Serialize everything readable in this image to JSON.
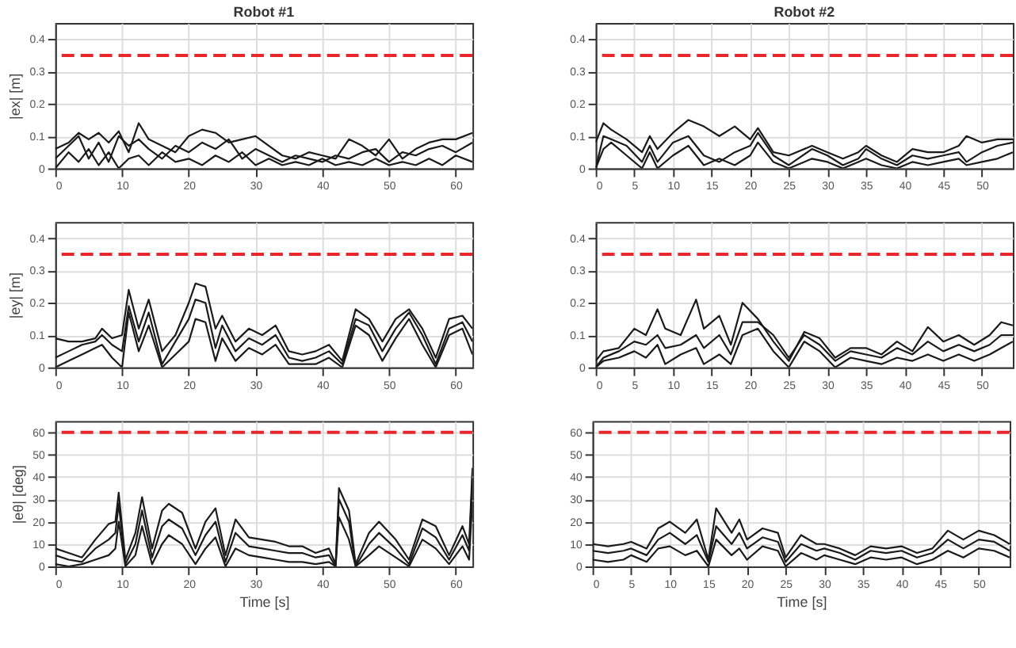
{
  "chart_data": [
    {
      "type": "line",
      "title": "Robot #1",
      "ylabel": "|ex| [m]",
      "xlim": [
        0,
        62.5
      ],
      "xticks": [
        0,
        10,
        20,
        30,
        40,
        50,
        60
      ],
      "ylim": [
        0,
        0.45
      ],
      "yticks": [
        0,
        0.1,
        0.2,
        0.3,
        0.4
      ],
      "grid": true,
      "ref_lines": [
        {
          "axis": "y",
          "value": 0.35,
          "color": "#e8262b",
          "line_style": "dashed"
        }
      ],
      "x": [
        0,
        2,
        3.5,
        5,
        6.5,
        8,
        9.5,
        11,
        12.5,
        14,
        16,
        18,
        20,
        22,
        24,
        26,
        28,
        30,
        32,
        34,
        36,
        38,
        40,
        42,
        44,
        46,
        48,
        50,
        52,
        54,
        56,
        58,
        60,
        62.5
      ],
      "series": [
        {
          "color": "#1a1a1a",
          "values": [
            0.06,
            0.08,
            0.11,
            0.09,
            0.11,
            0.08,
            0.115,
            0.05,
            0.14,
            0.09,
            0.07,
            0.05,
            0.1,
            0.12,
            0.11,
            0.08,
            0.09,
            0.1,
            0.07,
            0.04,
            0.03,
            0.05,
            0.04,
            0.03,
            0.09,
            0.07,
            0.04,
            0.09,
            0.03,
            0.06,
            0.08,
            0.09,
            0.09,
            0.11
          ]
        },
        {
          "color": "#1a1a1a",
          "values": [
            0.03,
            0.07,
            0.1,
            0.03,
            0.08,
            0.02,
            0.1,
            0.07,
            0.09,
            0.06,
            0.03,
            0.07,
            0.05,
            0.08,
            0.06,
            0.09,
            0.03,
            0.06,
            0.04,
            0.02,
            0.04,
            0.03,
            0.02,
            0.04,
            0.03,
            0.05,
            0.06,
            0.02,
            0.05,
            0.04,
            0.06,
            0.07,
            0.05,
            0.08
          ]
        },
        {
          "color": "#1a1a1a",
          "values": [
            0,
            0.05,
            0.02,
            0.06,
            0.01,
            0.05,
            0,
            0.03,
            0.04,
            0.01,
            0.05,
            0.02,
            0.03,
            0.01,
            0.04,
            0.02,
            0.05,
            0.01,
            0.03,
            0.01,
            0.02,
            0.01,
            0.03,
            0.01,
            0.02,
            0.01,
            0.03,
            0.01,
            0.02,
            0.01,
            0.03,
            0.01,
            0.04,
            0.02
          ]
        }
      ]
    },
    {
      "type": "line",
      "title": "Robot #2",
      "xlim": [
        0,
        54
      ],
      "xticks": [
        0,
        5,
        10,
        15,
        20,
        25,
        30,
        35,
        40,
        45,
        50
      ],
      "ylim": [
        0,
        0.45
      ],
      "yticks": [
        0,
        0.1,
        0.2,
        0.3,
        0.4
      ],
      "grid": true,
      "ref_lines": [
        {
          "axis": "y",
          "value": 0.35,
          "color": "#e8262b",
          "line_style": "dashed"
        }
      ],
      "x": [
        0,
        1,
        2,
        4,
        6,
        7,
        8,
        10,
        12,
        14,
        16,
        18,
        20,
        21,
        23,
        25,
        28,
        30,
        32,
        34,
        35,
        37,
        39,
        41,
        43,
        45,
        47,
        48,
        50,
        52,
        54
      ],
      "series": [
        {
          "color": "#1a1a1a",
          "values": [
            0.08,
            0.14,
            0.12,
            0.09,
            0.05,
            0.1,
            0.06,
            0.11,
            0.15,
            0.13,
            0.1,
            0.13,
            0.09,
            0.125,
            0.05,
            0.04,
            0.07,
            0.05,
            0.03,
            0.05,
            0.07,
            0.04,
            0.02,
            0.06,
            0.05,
            0.05,
            0.07,
            0.1,
            0.08,
            0.09,
            0.09
          ]
        },
        {
          "color": "#1a1a1a",
          "values": [
            0,
            0.1,
            0.09,
            0.07,
            0.02,
            0.07,
            0.02,
            0.08,
            0.1,
            0.04,
            0.02,
            0.05,
            0.07,
            0.11,
            0.04,
            0.01,
            0.06,
            0.04,
            0.01,
            0.03,
            0.06,
            0.03,
            0.01,
            0.04,
            0.03,
            0.04,
            0.05,
            0.02,
            0.05,
            0.07,
            0.08
          ]
        },
        {
          "color": "#1a1a1a",
          "values": [
            0,
            0.06,
            0.08,
            0.04,
            0,
            0.05,
            0,
            0.04,
            0.07,
            0.01,
            0.03,
            0.01,
            0.04,
            0.08,
            0.02,
            0,
            0.03,
            0.02,
            0,
            0.02,
            0.03,
            0.01,
            0,
            0.02,
            0.01,
            0.02,
            0.03,
            0.01,
            0.02,
            0.03,
            0.05
          ]
        }
      ]
    },
    {
      "type": "line",
      "ylabel": "|ey| [m]",
      "xlim": [
        0,
        62.5
      ],
      "xticks": [
        0,
        10,
        20,
        30,
        40,
        50,
        60
      ],
      "ylim": [
        0,
        0.45
      ],
      "yticks": [
        0,
        0.1,
        0.2,
        0.3,
        0.4
      ],
      "grid": true,
      "ref_lines": [
        {
          "axis": "y",
          "value": 0.35,
          "color": "#e8262b",
          "line_style": "dashed"
        }
      ],
      "x": [
        0,
        2,
        4,
        6,
        7,
        8.5,
        10,
        11,
        12.5,
        14,
        16,
        18,
        20,
        21,
        22.5,
        24,
        25,
        27,
        29,
        31,
        33,
        35,
        37,
        39,
        41,
        43,
        45,
        47,
        49,
        51,
        53,
        55,
        57,
        59,
        61,
        62.5
      ],
      "series": [
        {
          "color": "#1a1a1a",
          "values": [
            0.09,
            0.08,
            0.08,
            0.09,
            0.12,
            0.09,
            0.1,
            0.24,
            0.12,
            0.21,
            0.05,
            0.1,
            0.2,
            0.26,
            0.25,
            0.12,
            0.16,
            0.08,
            0.12,
            0.1,
            0.13,
            0.05,
            0.04,
            0.05,
            0.07,
            0.02,
            0.18,
            0.15,
            0.08,
            0.15,
            0.18,
            0.12,
            0.03,
            0.15,
            0.16,
            0.12
          ]
        },
        {
          "color": "#1a1a1a",
          "values": [
            0.03,
            0.05,
            0.07,
            0.08,
            0.1,
            0.07,
            0.05,
            0.19,
            0.08,
            0.17,
            0.01,
            0.08,
            0.15,
            0.21,
            0.2,
            0.06,
            0.13,
            0.05,
            0.09,
            0.07,
            0.1,
            0.03,
            0.02,
            0.03,
            0.05,
            0.01,
            0.15,
            0.13,
            0.05,
            0.12,
            0.17,
            0.1,
            0.01,
            0.12,
            0.14,
            0.08
          ]
        },
        {
          "color": "#1a1a1a",
          "values": [
            0,
            0.02,
            0.04,
            0.06,
            0.07,
            0.03,
            0,
            0.17,
            0.05,
            0.13,
            0,
            0.04,
            0.08,
            0.15,
            0.14,
            0.02,
            0.09,
            0.02,
            0.06,
            0.04,
            0.07,
            0.01,
            0.01,
            0.01,
            0.03,
            0,
            0.13,
            0.1,
            0.02,
            0.09,
            0.15,
            0.07,
            0,
            0.1,
            0.12,
            0.04
          ]
        }
      ]
    },
    {
      "type": "line",
      "xlim": [
        0,
        54
      ],
      "xticks": [
        0,
        5,
        10,
        15,
        20,
        25,
        30,
        35,
        40,
        45,
        50
      ],
      "ylim": [
        0,
        0.45
      ],
      "yticks": [
        0,
        0.1,
        0.2,
        0.3,
        0.4
      ],
      "grid": true,
      "ref_lines": [
        {
          "axis": "y",
          "value": 0.35,
          "color": "#e8262b",
          "line_style": "dashed"
        }
      ],
      "x": [
        0,
        1,
        3,
        5,
        6.5,
        8,
        9,
        11,
        13,
        14,
        16,
        17.5,
        19,
        21,
        23,
        25,
        27,
        29,
        31,
        33,
        35,
        37,
        39,
        41,
        43,
        45,
        47,
        49,
        51,
        52.5,
        54
      ],
      "series": [
        {
          "color": "#1a1a1a",
          "values": [
            0.02,
            0.05,
            0.06,
            0.12,
            0.1,
            0.18,
            0.12,
            0.1,
            0.21,
            0.12,
            0.16,
            0.07,
            0.2,
            0.15,
            0.08,
            0.02,
            0.11,
            0.09,
            0.03,
            0.06,
            0.06,
            0.04,
            0.08,
            0.05,
            0.125,
            0.08,
            0.1,
            0.07,
            0.1,
            0.14,
            0.13
          ]
        },
        {
          "color": "#1a1a1a",
          "values": [
            0,
            0.03,
            0.05,
            0.08,
            0.07,
            0.1,
            0.06,
            0.07,
            0.1,
            0.06,
            0.1,
            0.04,
            0.14,
            0.14,
            0.1,
            0.03,
            0.1,
            0.07,
            0.02,
            0.05,
            0.04,
            0.03,
            0.06,
            0.04,
            0.08,
            0.05,
            0.07,
            0.05,
            0.07,
            0.1,
            0.1
          ]
        },
        {
          "color": "#1a1a1a",
          "values": [
            0,
            0.02,
            0.03,
            0.05,
            0.03,
            0.07,
            0.01,
            0.04,
            0.06,
            0.01,
            0.04,
            0.01,
            0.1,
            0.12,
            0.05,
            0,
            0.08,
            0.05,
            0,
            0.03,
            0.02,
            0.01,
            0.03,
            0.02,
            0.04,
            0.02,
            0.04,
            0.02,
            0.04,
            0.06,
            0.08
          ]
        }
      ]
    },
    {
      "type": "line",
      "ylabel": "|eθ| [deg]",
      "xlabel": "Time [s]",
      "xlim": [
        0,
        62.5
      ],
      "xticks": [
        0,
        10,
        20,
        30,
        40,
        50,
        60
      ],
      "ylim": [
        0,
        65
      ],
      "yticks": [
        0,
        10,
        20,
        30,
        40,
        50,
        60
      ],
      "grid": true,
      "ref_lines": [
        {
          "axis": "y",
          "value": 60,
          "color": "#e8262b",
          "line_style": "dashed"
        }
      ],
      "x": [
        0,
        2,
        4,
        6,
        8,
        9,
        9.5,
        10.5,
        12,
        13,
        14.5,
        16,
        17,
        19,
        21,
        22.5,
        24,
        25.5,
        27,
        29,
        31,
        33,
        35,
        37,
        39,
        41,
        42,
        42.5,
        44,
        45,
        47,
        48.5,
        51,
        53,
        55,
        57,
        59,
        61,
        62,
        62.5
      ],
      "series": [
        {
          "color": "#1a1a1a",
          "values": [
            8,
            6,
            4,
            12,
            19,
            20,
            33,
            3,
            15,
            31,
            8,
            25,
            28,
            24,
            8,
            20,
            26,
            5,
            21,
            13,
            12,
            11,
            9,
            9,
            6,
            8,
            1,
            35,
            25,
            1,
            15,
            20,
            12,
            3,
            21,
            18,
            5,
            18,
            10,
            44
          ]
        },
        {
          "color": "#1a1a1a",
          "values": [
            5,
            3,
            2,
            8,
            12,
            15,
            28,
            1,
            10,
            25,
            4,
            18,
            21,
            17,
            5,
            14,
            20,
            2,
            15,
            9,
            8,
            7,
            6,
            6,
            4,
            5,
            0,
            30,
            20,
            0,
            10,
            15,
            8,
            1,
            17,
            13,
            3,
            14,
            7,
            40
          ]
        },
        {
          "color": "#1a1a1a",
          "values": [
            1,
            0,
            1,
            3,
            5,
            8,
            20,
            0,
            5,
            18,
            1,
            10,
            14,
            10,
            1,
            8,
            13,
            0,
            8,
            5,
            4,
            3,
            2,
            2,
            1,
            2,
            0,
            22,
            12,
            0,
            5,
            9,
            4,
            0,
            12,
            8,
            1,
            9,
            3,
            30
          ]
        }
      ]
    },
    {
      "type": "line",
      "xlabel": "Time [s]",
      "xlim": [
        0,
        54
      ],
      "xticks": [
        0,
        5,
        10,
        15,
        20,
        25,
        30,
        35,
        40,
        45,
        50
      ],
      "ylim": [
        0,
        65
      ],
      "yticks": [
        0,
        10,
        20,
        30,
        40,
        50,
        60
      ],
      "grid": true,
      "ref_lines": [
        {
          "axis": "y",
          "value": 60,
          "color": "#e8262b",
          "line_style": "dashed"
        }
      ],
      "x": [
        0,
        2,
        4,
        5,
        7,
        8.5,
        10,
        12,
        13.5,
        15,
        16,
        18,
        19,
        20,
        22,
        24,
        25,
        27,
        29,
        30,
        32,
        34,
        36,
        38,
        40,
        42,
        44,
        46,
        48,
        50,
        52,
        54
      ],
      "series": [
        {
          "color": "#1a1a1a",
          "values": [
            10,
            9,
            10,
            11,
            8,
            17,
            20,
            15,
            21,
            3,
            26,
            15,
            21,
            12,
            17,
            15,
            4,
            14,
            10,
            10,
            8,
            5,
            9,
            8,
            9,
            6,
            8,
            16,
            12,
            16,
            14,
            10
          ]
        },
        {
          "color": "#1a1a1a",
          "values": [
            7,
            6,
            7,
            8,
            5,
            12,
            15,
            10,
            14,
            2,
            18,
            10,
            15,
            8,
            13,
            11,
            2,
            10,
            7,
            8,
            6,
            3,
            7,
            6,
            7,
            4,
            6,
            12,
            8,
            12,
            11,
            7
          ]
        },
        {
          "color": "#1a1a1a",
          "values": [
            3,
            2,
            3,
            5,
            2,
            8,
            9,
            5,
            7,
            0,
            12,
            5,
            8,
            3,
            9,
            7,
            0,
            6,
            3,
            5,
            3,
            1,
            4,
            3,
            4,
            1,
            3,
            7,
            4,
            8,
            7,
            4
          ]
        }
      ]
    }
  ]
}
